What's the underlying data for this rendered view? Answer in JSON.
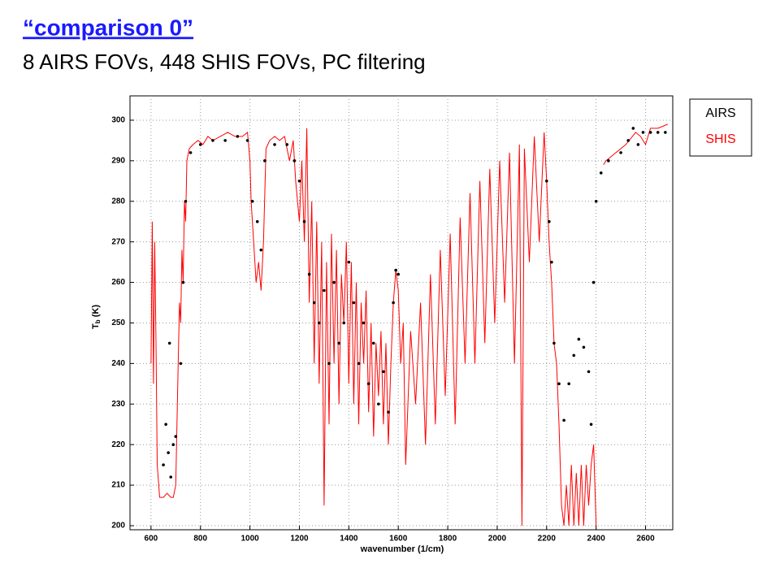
{
  "chart_data": {
    "type": "line",
    "title": "“comparison 0”",
    "subtitle": "8 AIRS FOVs, 448 SHIS FOVs, PC filtering",
    "x_label": "wavenumber (1/cm)",
    "y_label_main": "T",
    "y_label_sub": "b",
    "y_label_unit": " (K)",
    "xlim": [
      515,
      2710
    ],
    "ylim": [
      199,
      306
    ],
    "xticks": [
      600,
      800,
      1000,
      1200,
      1400,
      1600,
      1800,
      2000,
      2200,
      2400,
      2600
    ],
    "yticks": [
      200,
      210,
      220,
      230,
      240,
      250,
      260,
      270,
      280,
      290,
      300
    ],
    "grid": true,
    "legend": "upper right outside",
    "series": [
      {
        "name": "AIRS",
        "color": "#000000",
        "style": "markers",
        "x": [
          650,
          660,
          670,
          675,
          680,
          690,
          700,
          720,
          730,
          740,
          760,
          800,
          850,
          900,
          950,
          990,
          1010,
          1030,
          1045,
          1060,
          1100,
          1150,
          1180,
          1200,
          1220,
          1240,
          1260,
          1280,
          1300,
          1320,
          1340,
          1360,
          1380,
          1400,
          1420,
          1440,
          1460,
          1480,
          1500,
          1520,
          1540,
          1560,
          1580,
          1590,
          1600,
          2200,
          2210,
          2220,
          2230,
          2250,
          2270,
          2290,
          2310,
          2330,
          2350,
          2370,
          2380,
          2390,
          2400,
          2420,
          2450,
          2500,
          2530,
          2550,
          2570,
          2590,
          2620,
          2650,
          2680
        ],
        "values": [
          215,
          225,
          218,
          245,
          212,
          220,
          222,
          240,
          260,
          280,
          292,
          294,
          295,
          295,
          296,
          295,
          280,
          275,
          268,
          290,
          294,
          294,
          290,
          285,
          275,
          262,
          255,
          250,
          258,
          240,
          260,
          245,
          250,
          265,
          255,
          240,
          250,
          235,
          245,
          230,
          238,
          228,
          255,
          263,
          262,
          285,
          275,
          265,
          245,
          235,
          226,
          235,
          242,
          246,
          244,
          238,
          225,
          260,
          280,
          287,
          290,
          292,
          295,
          298,
          294,
          297,
          297,
          297,
          297
        ]
      },
      {
        "name": "SHIS",
        "color": "#ff0000",
        "style": "line",
        "x": [
          600,
          605,
          610,
          615,
          620,
          625,
          635,
          650,
          665,
          680,
          690,
          700,
          705,
          710,
          715,
          720,
          725,
          730,
          735,
          740,
          745,
          755,
          770,
          790,
          810,
          830,
          850,
          880,
          910,
          940,
          970,
          990,
          1000,
          1005,
          1015,
          1025,
          1035,
          1045,
          1055,
          1065,
          1080,
          1100,
          1120,
          1140,
          1160,
          1175,
          1185,
          1200,
          1210,
          1220,
          1230,
          1240,
          1250,
          1260,
          1270,
          1280,
          1290,
          1300,
          1310,
          1320,
          1330,
          1340,
          1350,
          1360,
          1370,
          1380,
          1390,
          1400,
          1410,
          1420,
          1430,
          1440,
          1450,
          1460,
          1470,
          1480,
          1490,
          1500,
          1510,
          1520,
          1530,
          1540,
          1550,
          1560,
          1570,
          1580,
          1590,
          1600,
          1610,
          1620,
          1630,
          1650,
          1670,
          1690,
          1710,
          1730,
          1750,
          1770,
          1790,
          1810,
          1830,
          1850,
          1870,
          1890,
          1910,
          1930,
          1950,
          1970,
          1990,
          2010,
          2030,
          2050,
          2070,
          2090,
          2100,
          2110,
          2130,
          2150,
          2170,
          2190,
          2200,
          2210,
          2220,
          2230,
          2240,
          2250,
          2260,
          2270,
          2280,
          2290,
          2300,
          2310,
          2320,
          2330,
          2340,
          2350,
          2360,
          2370,
          2380,
          2390,
          2400,
          2410,
          2430,
          2440,
          2480,
          2520,
          2560,
          2580,
          2600,
          2620,
          2650,
          2690
        ],
        "values": [
          240,
          275,
          235,
          270,
          245,
          215,
          207,
          207,
          208,
          207,
          207,
          210,
          225,
          240,
          255,
          250,
          268,
          260,
          280,
          275,
          290,
          293,
          294,
          295,
          294,
          296,
          295,
          296,
          297,
          296,
          296,
          297,
          290,
          280,
          270,
          260,
          265,
          258,
          270,
          293,
          295,
          296,
          295,
          296,
          290,
          295,
          285,
          275,
          290,
          270,
          298,
          255,
          280,
          240,
          275,
          235,
          270,
          205,
          265,
          225,
          272,
          240,
          268,
          230,
          262,
          250,
          270,
          235,
          265,
          230,
          260,
          225,
          255,
          240,
          258,
          228,
          250,
          222,
          245,
          232,
          248,
          225,
          245,
          220,
          240,
          255,
          263,
          258,
          240,
          250,
          215,
          248,
          230,
          255,
          220,
          262,
          225,
          268,
          232,
          272,
          225,
          276,
          240,
          282,
          240,
          285,
          245,
          288,
          250,
          290,
          255,
          292,
          240,
          294,
          200,
          293,
          265,
          296,
          270,
          297,
          285,
          270,
          260,
          245,
          240,
          225,
          205,
          200,
          210,
          200,
          215,
          200,
          213,
          200,
          215,
          200,
          215,
          205,
          215,
          220,
          200,
          null,
          289,
          290,
          292,
          294,
          297,
          296,
          294,
          298,
          298,
          299
        ]
      }
    ]
  }
}
